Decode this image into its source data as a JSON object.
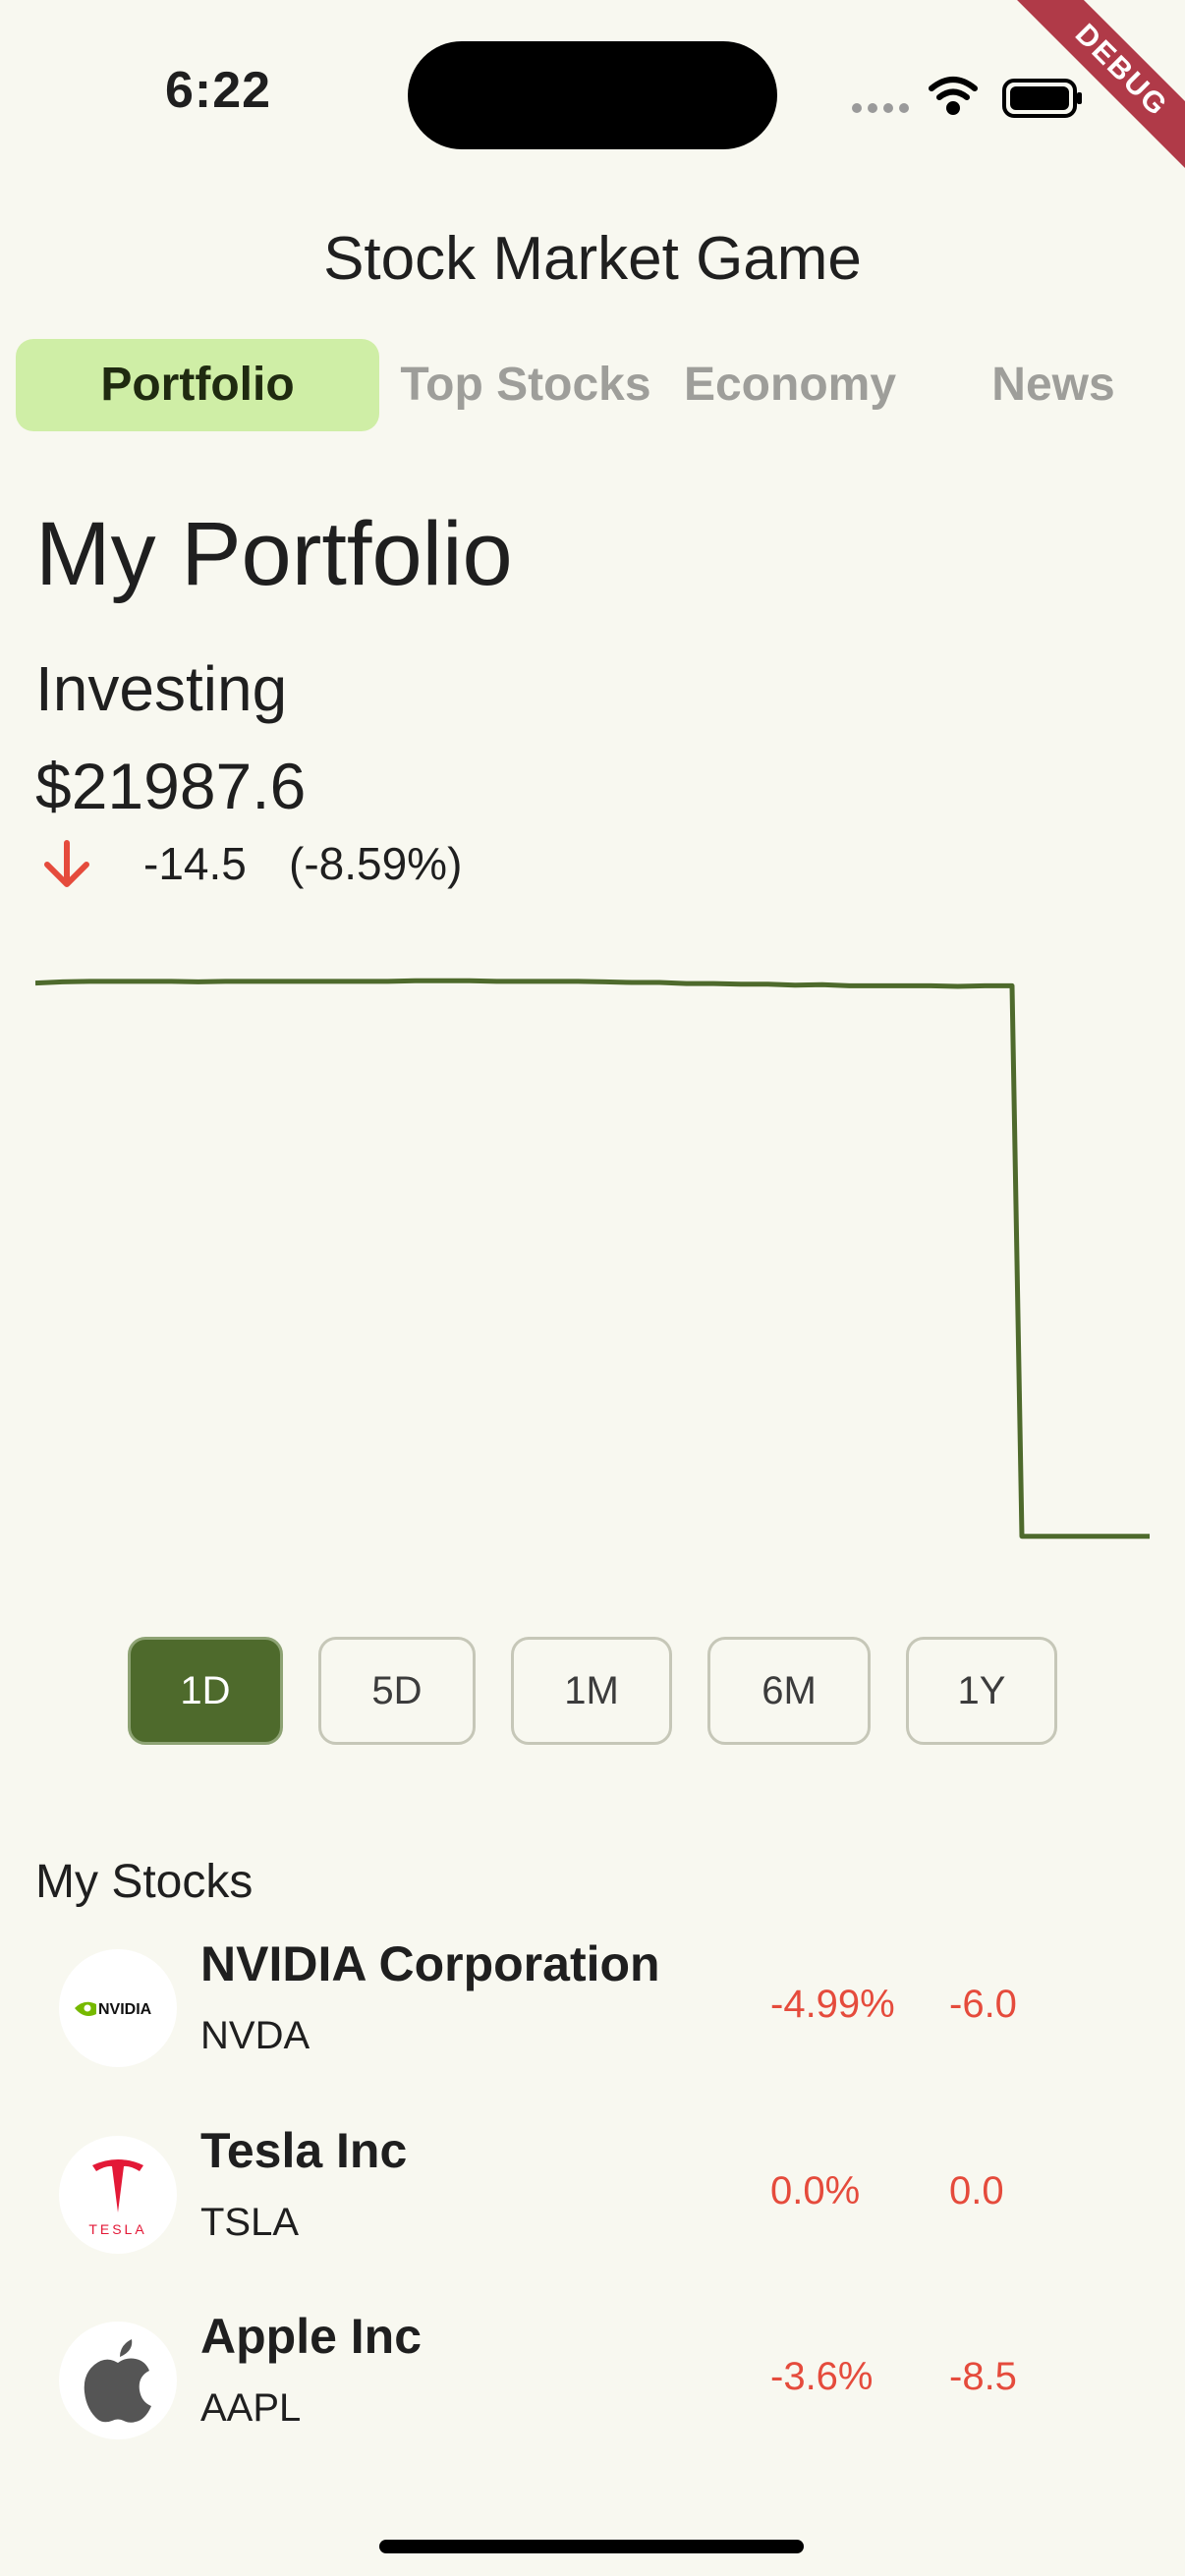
{
  "status_bar": {
    "time": "6:22"
  },
  "debug_banner": "DEBUG",
  "app": {
    "title": "Stock Market Game"
  },
  "tabs": [
    {
      "label": "Portfolio",
      "active": true
    },
    {
      "label": "Top Stocks",
      "active": false
    },
    {
      "label": "Economy",
      "active": false
    },
    {
      "label": "News",
      "active": false
    }
  ],
  "portfolio": {
    "heading": "My Portfolio",
    "investing_label": "Investing",
    "total_value": "$21987.6",
    "change_amount": "-14.5",
    "change_percent": "(-8.59%)",
    "direction_icon": "arrow-down-icon"
  },
  "chart_data": {
    "type": "line",
    "color": "#4e6a2c",
    "values": [
      99.2,
      99.4,
      99.5,
      99.5,
      99.5,
      99.5,
      99.4,
      99.5,
      99.5,
      99.5,
      99.5,
      99.5,
      99.5,
      99.5,
      99.6,
      99.6,
      99.6,
      99.5,
      99.5,
      99.5,
      99.5,
      99.4,
      99.3,
      99.3,
      99.1,
      99.1,
      99.0,
      99.0,
      98.8,
      98.9,
      98.7,
      98.7,
      98.7,
      98.7,
      98.6,
      98.7,
      98.7,
      0.4,
      0.4,
      0.4,
      0.4
    ],
    "ylim": [
      0,
      100
    ],
    "grid": false
  },
  "ranges": [
    {
      "label": "1D",
      "active": true
    },
    {
      "label": "5D",
      "active": false
    },
    {
      "label": "1M",
      "active": false
    },
    {
      "label": "6M",
      "active": false
    },
    {
      "label": "1Y",
      "active": false
    }
  ],
  "stocks_section": {
    "title": "My Stocks",
    "items": [
      {
        "name": "NVIDIA Corporation",
        "ticker": "NVDA",
        "percent": "-4.99%",
        "change": "-6.0",
        "logo_text": "NVIDIA",
        "logo_icon": "nvidia-logo-icon",
        "accent": "#76b900"
      },
      {
        "name": "Tesla Inc",
        "ticker": "TSLA",
        "percent": "0.0%",
        "change": "0.0",
        "logo_text": "TESLA",
        "logo_icon": "tesla-logo-icon",
        "accent": "#e31937"
      },
      {
        "name": "Apple Inc",
        "ticker": "AAPL",
        "percent": "-3.6%",
        "change": "-8.5",
        "logo_icon": "apple-logo-icon",
        "accent": "#555555"
      }
    ]
  },
  "colors": {
    "background": "#f8f8f0",
    "accent": "#4e6a2c",
    "tab_active": "#cfeea6",
    "negative": "#e54b3c"
  }
}
